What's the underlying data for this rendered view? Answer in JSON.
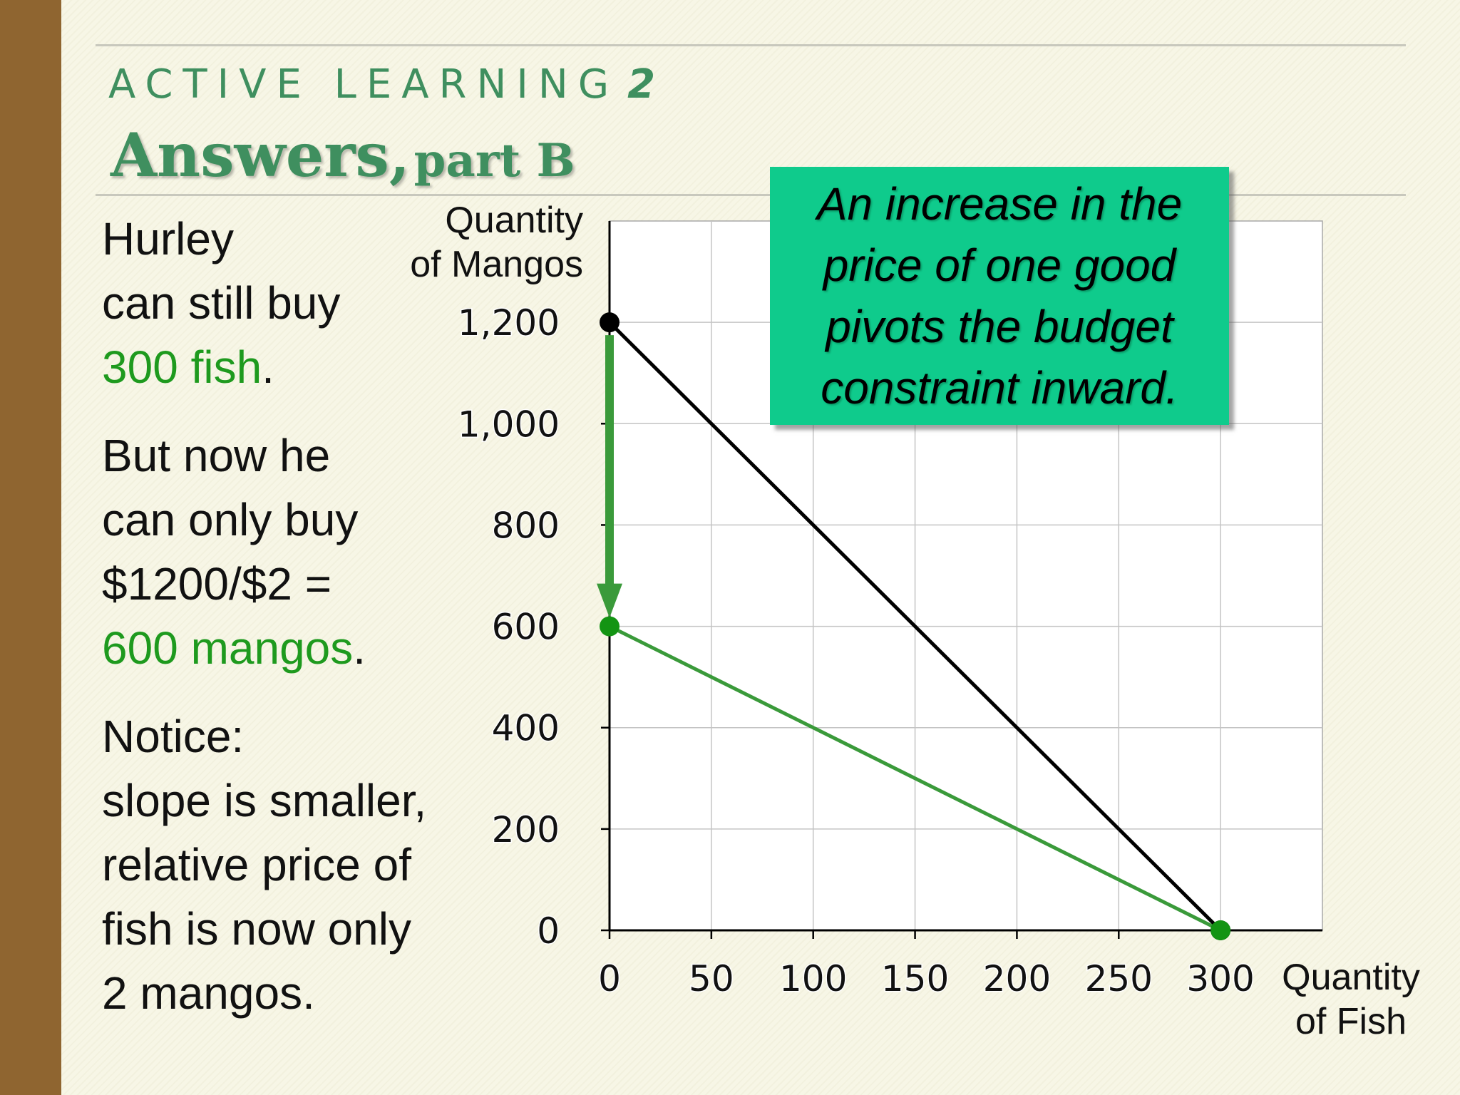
{
  "header": {
    "kicker": "ACTIVE LEARNING",
    "kicker_number": "2",
    "title_big": "Answers,",
    "title_small": "part B"
  },
  "left_text": {
    "p1_line1": "Hurley",
    "p1_line2": "can still buy",
    "p1_highlight": "300 fish",
    "p1_end": ".",
    "p2_line1": "But now he",
    "p2_line2": "can only buy",
    "p2_line3": "$1200/$2 =",
    "p2_highlight": "600 mangos",
    "p2_end": ".",
    "p3_line1": "Notice:",
    "p3_line2": "slope is smaller,",
    "p3_line3": "relative price of",
    "p3_line4": "fish is now only",
    "p3_line5": "2 mangos."
  },
  "callout": {
    "text": "An increase in the price of one good pivots the budget constraint inward."
  },
  "colors": {
    "sidebar": "#8f6530",
    "title_green": "#3f8f5f",
    "highlight_green": "#1e9a1e",
    "callout_bg": "#0fcb8c",
    "original_line": "#000000",
    "new_line": "#3a9a3a",
    "arrow": "#3a9a3a"
  },
  "chart_data": {
    "type": "line",
    "xlabel_line1": "Quantity",
    "xlabel_line2": "of Fish",
    "ylabel_line1": "Quantity",
    "ylabel_line2": "of Mangos",
    "xlim": [
      0,
      350
    ],
    "ylim": [
      0,
      1400
    ],
    "x_ticks": [
      0,
      50,
      100,
      150,
      200,
      250,
      300
    ],
    "x_tick_labels": [
      "0",
      "50",
      "100",
      "150",
      "200",
      "250",
      "300"
    ],
    "y_ticks": [
      0,
      200,
      400,
      600,
      800,
      1000,
      1200
    ],
    "y_tick_labels": [
      "0",
      "200",
      "400",
      "600",
      "800",
      "1,000",
      "1,200"
    ],
    "grid": true,
    "series": [
      {
        "points": [
          [
            0,
            1200
          ],
          [
            300,
            0
          ]
        ],
        "color": "#000000",
        "marker_color": "#000000"
      },
      {
        "points": [
          [
            0,
            600
          ],
          [
            300,
            0
          ]
        ],
        "color": "#3a9a3a",
        "marker_color": "#139413"
      }
    ],
    "arrow": {
      "from": [
        0,
        1200
      ],
      "to": [
        0,
        600
      ],
      "color": "#3a9a3a"
    }
  }
}
